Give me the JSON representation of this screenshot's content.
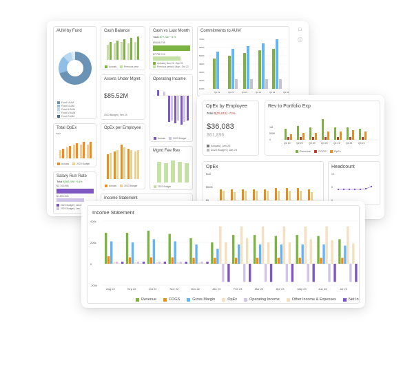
{
  "side_icons": [
    "chat-icon",
    "info-icon"
  ],
  "colors": {
    "green": "#7cb342",
    "blue": "#64b5f6",
    "orange": "#ef8c1c",
    "purple": "#7e57c2",
    "light_green": "#c5e1a5",
    "light_orange": "#f4ce8f",
    "peach": "#f6dfc2",
    "lavender": "#d1c4e9",
    "grey": "#b0b0b0",
    "red": "#c0392b",
    "steel": "#5c7f9f"
  },
  "aum_by_fund": {
    "title": "AUM by Fund",
    "legend": [
      "Fund I AUM",
      "Fund II AUM",
      "Fund III AUM",
      "Fund IV AUM",
      "Fund V AUM"
    ]
  },
  "cash_balance": {
    "title": "Cash Balance",
    "legend": [
      "Actuals",
      "Previous year"
    ]
  },
  "cash_vs_last_month": {
    "title": "Cash vs Last Month",
    "total_label": "Total",
    "total_value": "$77,387",
    "total_delta": "+1%",
    "line1": "$5,848,738",
    "line2": "$7,782,749",
    "legend": [
      "Actuals | Nov 22 - Apr 23",
      "Previous period | May - Oct 22"
    ]
  },
  "commitments": {
    "title": "Commitments to AUM",
    "ticks": [
      "700%",
      "600%",
      "500%",
      "400%",
      "300%",
      "200%",
      "100%",
      "0%"
    ],
    "xlabels": [
      "Q1 21",
      "Q2 21",
      "Q3 21",
      "Q4 21",
      "Q1 22",
      "Q2 22"
    ]
  },
  "assets_under_mgmt": {
    "title": "Assets Under Mgmt",
    "value": "$85.52M",
    "sub": "2023 Budget | Feb 23"
  },
  "operating_income": {
    "title": "Operating Income",
    "legend": [
      "Actuals",
      "2023 Budget"
    ]
  },
  "total_opex": {
    "title": "Total OpEx",
    "axis": "$1M",
    "legend": [
      "Actuals",
      "2023 Budget"
    ]
  },
  "opex_per_employee_small": {
    "title": "OpEx per Employee",
    "legend": [
      "Actuals",
      "2023 Budget"
    ]
  },
  "mgmt_fee_rev": {
    "title": "Mgmt Fee Rev",
    "legend": [
      "2023 Budget"
    ]
  },
  "salary_run_rate": {
    "title": "Salary Run Rate",
    "total_label": "Total",
    "total_value": "$388,498",
    "total_delta": "+14%",
    "line1": "$2,744,998",
    "line2": "$1,800,000",
    "legend": [
      "2023 Budget | Jan 23",
      "2023 Budget | Jan - Mar"
    ]
  },
  "income_statement_bg": {
    "title": "Income Statement"
  },
  "opex_by_employee": {
    "title": "OpEx by Employee",
    "total_label": "Total",
    "total_value": "$(25,813)",
    "total_delta": "-72%",
    "value": "$36,083",
    "compare": "$61,896",
    "legend": [
      "Actuals | Jan 23",
      "2023 Budget | Jan 23"
    ]
  },
  "rev_to_portfolio": {
    "title": "Rev to Portfolio Exp",
    "ticks": [
      "1M",
      "500K",
      "0"
    ],
    "xlabels": [
      "Q1 20",
      "Q2 20",
      "Q3 20",
      "Q4 20",
      "Q1 21",
      "Q2 21",
      "Q3 21"
    ],
    "legend": [
      "Revenue",
      "COGS",
      "OpEx"
    ]
  },
  "opex": {
    "title": "OpEx",
    "ticks": [
      "$1M",
      "$500K",
      "$0"
    ]
  },
  "headcount": {
    "title": "Headcount",
    "ticks": [
      "10",
      "5",
      "0"
    ]
  },
  "income_statement": {
    "title": "Income Statement",
    "ticks": [
      "400k",
      "200k",
      "0",
      "-200k"
    ],
    "legend": [
      "Revenue",
      "COGS",
      "Gross Margin",
      "OpEx",
      "Operating Income",
      "Other Income & Expenses",
      "Net Income"
    ],
    "chart_data": {
      "type": "bar",
      "categories": [
        "Aug 22",
        "Sep 22",
        "Oct 22",
        "Nov 22",
        "Dec 22",
        "Jan 23",
        "Feb 23",
        "Mar 23",
        "Apr 23",
        "May 23",
        "Jun 23",
        "Jul 23"
      ],
      "ylim": [
        -200000,
        400000
      ],
      "series": [
        {
          "name": "Revenue",
          "values": [
            290000,
            290000,
            310000,
            280000,
            240000,
            200000,
            270000,
            270000,
            260000,
            270000,
            260000,
            230000
          ]
        },
        {
          "name": "COGS",
          "values": [
            70000,
            60000,
            60000,
            60000,
            55000,
            55000,
            55000,
            55000,
            55000,
            55000,
            55000,
            55000
          ]
        },
        {
          "name": "Gross Margin",
          "values": [
            210000,
            200000,
            230000,
            210000,
            180000,
            140000,
            180000,
            180000,
            180000,
            180000,
            180000,
            170000
          ]
        },
        {
          "name": "OpEx",
          "values": [
            15000,
            15000,
            15000,
            15000,
            15000,
            350000,
            350000,
            350000,
            350000,
            350000,
            350000,
            350000
          ]
        },
        {
          "name": "Operating Income",
          "values": [
            20000,
            20000,
            20000,
            20000,
            20000,
            -170000,
            -170000,
            -170000,
            -170000,
            -170000,
            -170000,
            -170000
          ]
        },
        {
          "name": "Other Income & Expenses",
          "values": [
            5000,
            5000,
            5000,
            5000,
            5000,
            200000,
            240000,
            200000,
            200000,
            230000,
            220000,
            190000
          ]
        },
        {
          "name": "Net Income",
          "values": [
            20000,
            20000,
            20000,
            20000,
            20000,
            -170000,
            -170000,
            -170000,
            -170000,
            -170000,
            -170000,
            -170000
          ]
        }
      ]
    }
  }
}
